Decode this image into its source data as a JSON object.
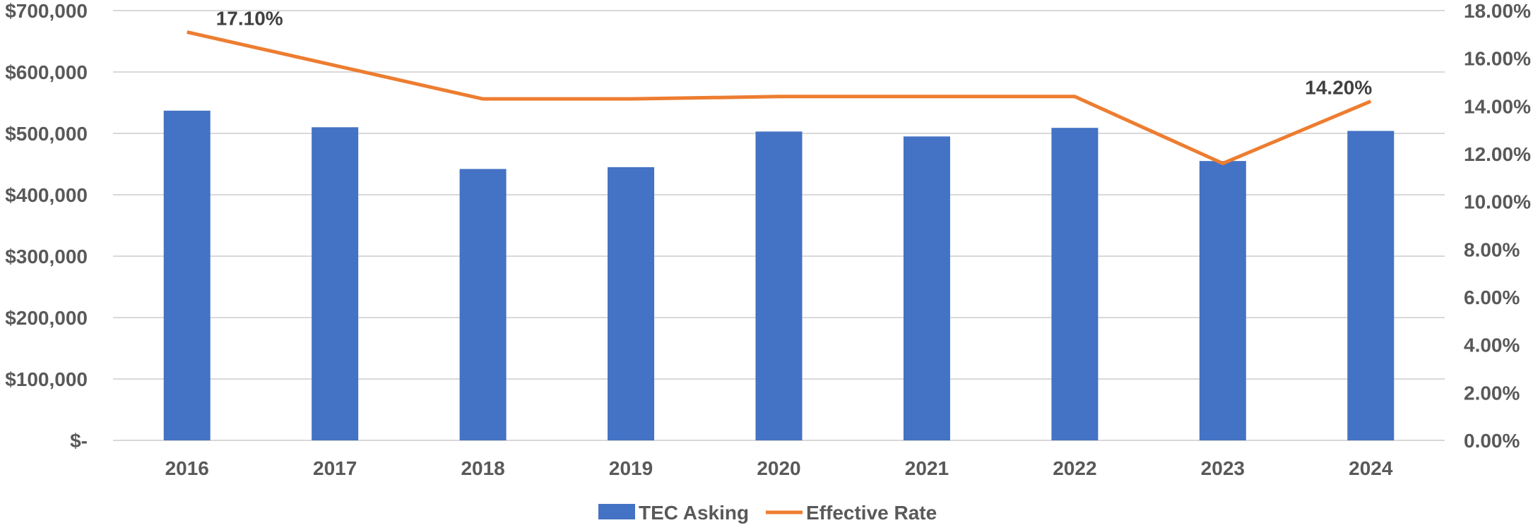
{
  "chart_data": {
    "type": "bar",
    "categories": [
      "2016",
      "2017",
      "2018",
      "2019",
      "2020",
      "2021",
      "2022",
      "2023",
      "2024"
    ],
    "series": [
      {
        "name": "TEC Asking",
        "type": "bar",
        "axis": "left",
        "color": "#4472C4",
        "values": [
          537000,
          510000,
          442000,
          445000,
          503000,
          495000,
          509000,
          455000,
          504000
        ]
      },
      {
        "name": "Effective Rate",
        "type": "line",
        "axis": "right",
        "color": "#ED7D31",
        "values": [
          17.1,
          15.7,
          14.3,
          14.3,
          14.4,
          14.4,
          14.4,
          11.6,
          14.2
        ]
      }
    ],
    "y_left": {
      "ticks": [
        "$-",
        "$100,000",
        "$200,000",
        "$300,000",
        "$400,000",
        "$500,000",
        "$600,000",
        "$700,000"
      ],
      "ylim": [
        0,
        700000
      ]
    },
    "y_right": {
      "ticks": [
        "0.00%",
        "2.00%",
        "4.00%",
        "6.00%",
        "8.00%",
        "10.00%",
        "12.00%",
        "14.00%",
        "16.00%",
        "18.00%"
      ],
      "ylim": [
        0,
        18
      ]
    },
    "data_labels": [
      {
        "series": 1,
        "index": 0,
        "text": "17.10%"
      },
      {
        "series": 1,
        "index": 8,
        "text": "14.20%"
      }
    ],
    "grid": true,
    "legend": "bottom",
    "gridline_color": "#D9D9D9"
  }
}
